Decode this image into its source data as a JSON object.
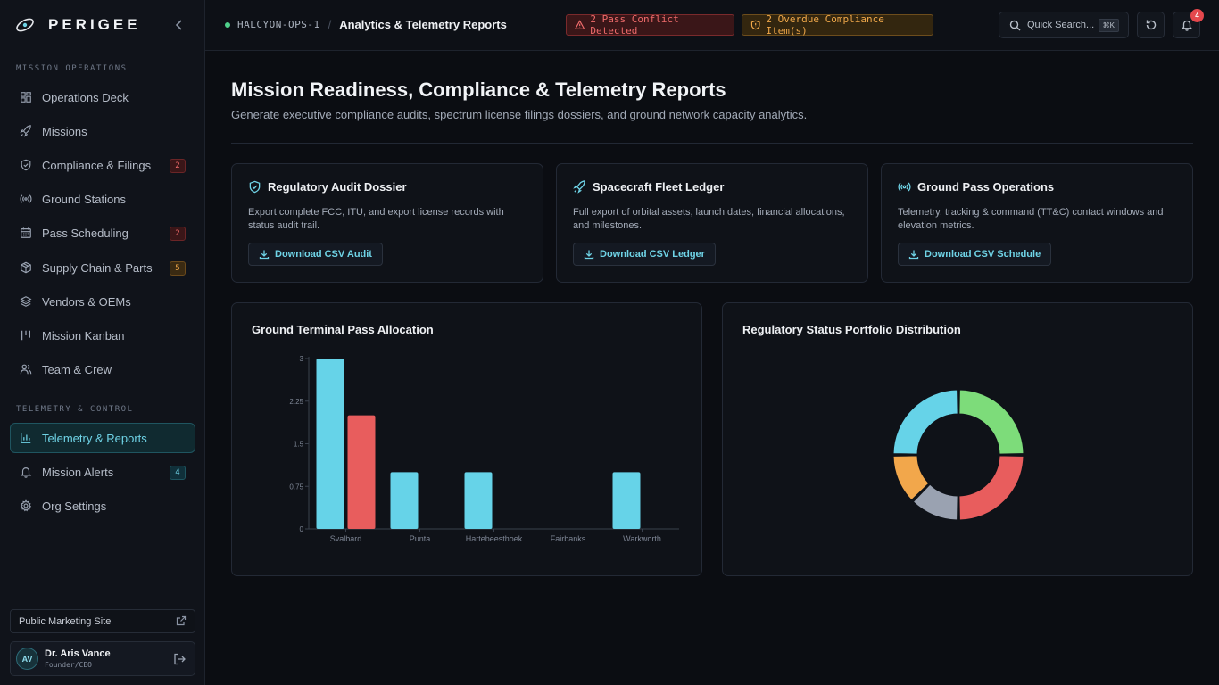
{
  "brand": {
    "name": "PERIGEE"
  },
  "sidebar": {
    "sections": [
      {
        "label": "MISSION OPERATIONS"
      },
      {
        "label": "TELEMETRY & CONTROL"
      }
    ],
    "items": [
      {
        "label": "Operations Deck",
        "icon": "grid-icon"
      },
      {
        "label": "Missions",
        "icon": "rocket-icon"
      },
      {
        "label": "Compliance & Filings",
        "icon": "shield-icon",
        "badge": "2"
      },
      {
        "label": "Ground Stations",
        "icon": "broadcast-icon"
      },
      {
        "label": "Pass Scheduling",
        "icon": "calendar-icon",
        "badge": "2"
      },
      {
        "label": "Supply Chain & Parts",
        "icon": "package-icon",
        "badge": "5"
      },
      {
        "label": "Vendors & OEMs",
        "icon": "layers-icon"
      },
      {
        "label": "Mission Kanban",
        "icon": "kanban-icon"
      },
      {
        "label": "Team & Crew",
        "icon": "users-icon"
      },
      {
        "label": "Telemetry & Reports",
        "icon": "bar-chart-icon",
        "active": true
      },
      {
        "label": "Mission Alerts",
        "icon": "bell-icon",
        "badge": "4"
      },
      {
        "label": "Org Settings",
        "icon": "gear-icon"
      }
    ],
    "footer": {
      "marketing_link": "Public Marketing Site",
      "user": {
        "initials": "AV",
        "name": "Dr. Aris Vance",
        "role": "Founder/CEO"
      }
    }
  },
  "topbar": {
    "workspace": "HALCYON-OPS-1",
    "separator": "/",
    "breadcrumb": "Analytics & Telemetry Reports",
    "alerts": {
      "conflict": "2 Pass Conflict Detected",
      "compliance": "2 Overdue Compliance Item(s)"
    },
    "search": {
      "placeholder": "Quick Search...",
      "shortcut": "⌘K"
    },
    "notifications": {
      "count": "4"
    }
  },
  "page": {
    "title": "Mission Readiness, Compliance & Telemetry Reports",
    "subtitle": "Generate executive compliance audits, spectrum license filings dossiers, and ground network capacity analytics."
  },
  "cards": [
    {
      "title": "Regulatory Audit Dossier",
      "icon": "shield-check-icon",
      "description": "Export complete FCC, ITU, and export license records with status audit trail.",
      "button": "Download CSV Audit"
    },
    {
      "title": "Spacecraft Fleet Ledger",
      "icon": "rocket-icon",
      "description": "Full export of orbital assets, launch dates, financial allocations, and milestones.",
      "button": "Download CSV Ledger"
    },
    {
      "title": "Ground Pass Operations",
      "icon": "broadcast-icon",
      "description": "Telemetry, tracking & command (TT&C) contact windows and elevation metrics.",
      "button": "Download CSV Schedule"
    }
  ],
  "chart_data": [
    {
      "type": "bar",
      "title": "Ground Terminal Pass Allocation",
      "categories": [
        "Svalbard",
        "Punta",
        "Hartebeesthoek",
        "Fairbanks",
        "Warkworth"
      ],
      "series": [
        {
          "values": [
            3,
            1,
            1,
            0,
            1
          ],
          "color": "#66d3e8"
        },
        {
          "values": [
            2,
            0,
            0,
            0,
            0
          ],
          "color": "#e85d5d"
        }
      ],
      "ylim": [
        0,
        3
      ],
      "yticks": [
        "0",
        "0.75",
        "1.5",
        "2.25",
        "3"
      ],
      "grid": false
    },
    {
      "type": "pie",
      "title": "Regulatory Status Portfolio Distribution",
      "donut": true,
      "slices": [
        {
          "value": 3,
          "color": "#7ddc7a"
        },
        {
          "value": 3,
          "color": "#e85d5d"
        },
        {
          "value": 1.5,
          "color": "#9aa2b1"
        },
        {
          "value": 1.5,
          "color": "#f2a74b"
        },
        {
          "value": 3,
          "color": "#66d3e8"
        }
      ]
    }
  ]
}
